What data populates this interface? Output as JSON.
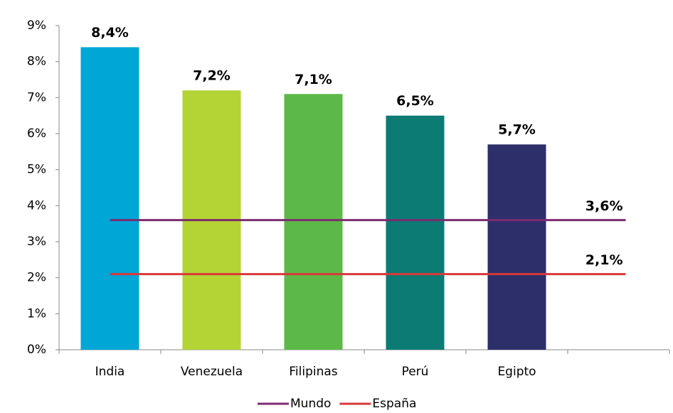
{
  "chart_data": {
    "type": "bar",
    "categories": [
      "India",
      "Venezuela",
      "Filipinas",
      "Perú",
      "Egipto",
      null
    ],
    "values": [
      8.4,
      7.2,
      7.1,
      6.5,
      5.7,
      null
    ],
    "value_labels": [
      "8,4%",
      "7,2%",
      "7,1%",
      "6,5%",
      "5,7%",
      null
    ],
    "colors": [
      "#00a6d6",
      "#b4d334",
      "#5cb947",
      "#0b7b74",
      "#2d2f6b",
      null
    ],
    "ylim": [
      0,
      9
    ],
    "yticks": [
      {
        "value": 0,
        "label": "0%"
      },
      {
        "value": 1,
        "label": "1%"
      },
      {
        "value": 2,
        "label": "2%"
      },
      {
        "value": 3,
        "label": "3%"
      },
      {
        "value": 4,
        "label": "4%"
      },
      {
        "value": 5,
        "label": "5%"
      },
      {
        "value": 6,
        "label": "6%"
      },
      {
        "value": 7,
        "label": "7%"
      },
      {
        "value": 8,
        "label": "8%"
      },
      {
        "value": 9,
        "label": "9%"
      }
    ],
    "reference_lines": [
      {
        "name": "Mundo",
        "color": "#7b2c6e",
        "value": 3.6,
        "value_label": "3,6%"
      },
      {
        "name": "España",
        "color": "#d9383a",
        "value": 2.1,
        "value_label": "2,1%"
      }
    ],
    "legend": "bottom"
  }
}
